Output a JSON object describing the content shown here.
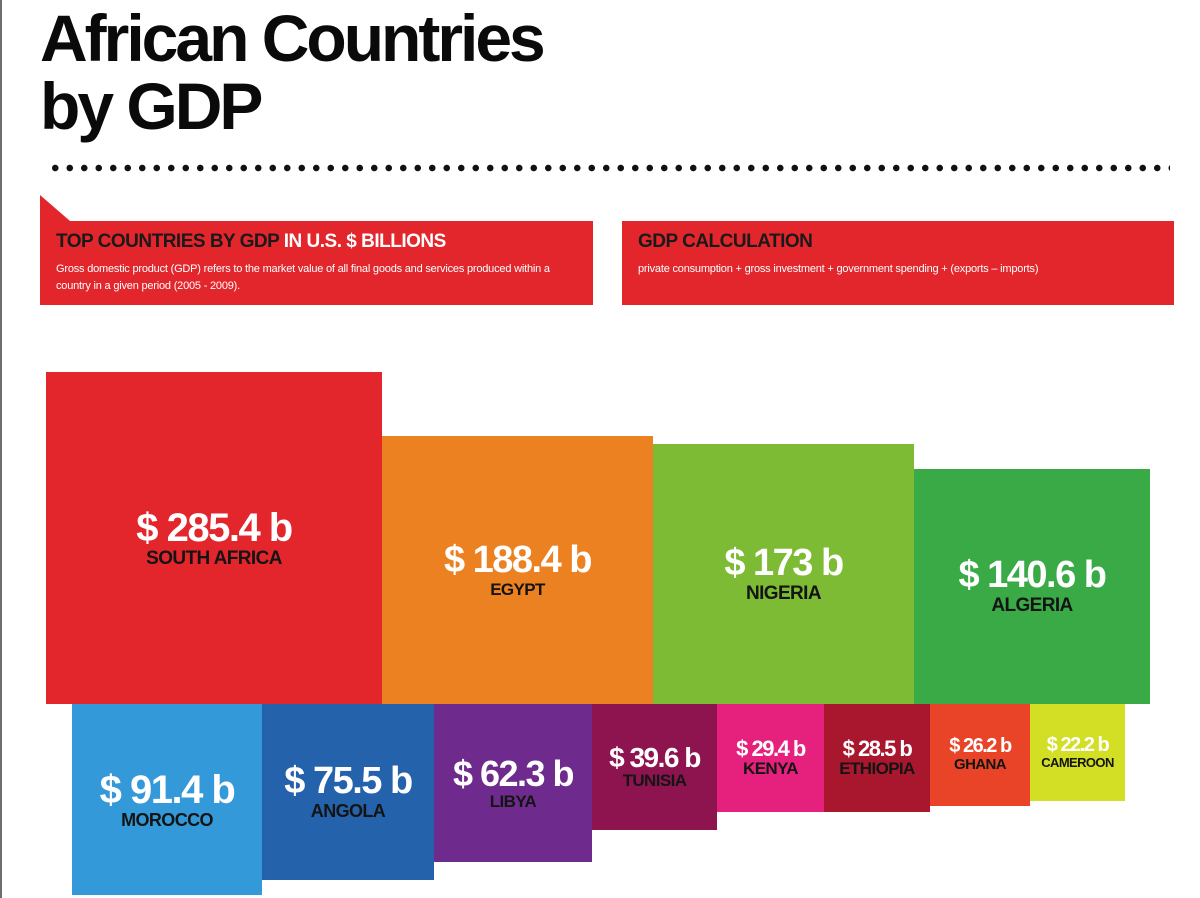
{
  "title": {
    "line1": "African Countries",
    "line2": "by GDP"
  },
  "panel_left": {
    "heading_dark": "TOP COUNTRIES BY GDP",
    "heading_white": "IN U.S. $ BILLIONS",
    "body": "Gross domestic product (GDP) refers to the market value of all final goods and services produced within a country in a given period (2005 - 2009)."
  },
  "panel_right": {
    "heading": "GDP CALCULATION",
    "body": "private consumption + gross investment + government spending + (exports – imports)"
  },
  "colors": {
    "panel": "#e2262c",
    "south_africa": "#e2262c",
    "egypt": "#ec8121",
    "nigeria": "#7dbb34",
    "algeria": "#3aaa47",
    "morocco": "#3399d8",
    "angola": "#2562ac",
    "libya": "#6e2a8d",
    "tunisia": "#8e1450",
    "kenya": "#e5217d",
    "ethiopia": "#a8172e",
    "ghana": "#ea4428",
    "cameroon": "#d2df25"
  },
  "chart_data": {
    "type": "treemap",
    "unit": "U.S. $ billions",
    "categories": [
      "SOUTH AFRICA",
      "EGYPT",
      "NIGERIA",
      "ALGERIA",
      "MOROCCO",
      "ANGOLA",
      "LIBYA",
      "TUNISIA",
      "KENYA",
      "ETHIOPIA",
      "GHANA",
      "CAMEROON"
    ],
    "values": [
      285.4,
      188.4,
      173,
      140.6,
      91.4,
      75.5,
      62.3,
      39.6,
      29.4,
      28.5,
      26.2,
      22.2
    ],
    "value_labels": [
      "$ 285.4 b",
      "$ 188.4 b",
      "$ 173 b",
      "$ 140.6 b",
      "$ 91.4 b",
      "$ 75.5 b",
      "$ 62.3 b",
      "$ 39.6 b",
      "$ 29.4 b",
      "$ 28.5 b",
      "$ 26.2 b",
      "$ 22.2 b"
    ]
  }
}
